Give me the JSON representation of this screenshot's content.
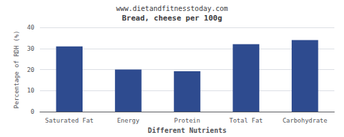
{
  "chart_data": {
    "type": "bar",
    "title": "Bread, cheese per 100g",
    "subtitle": "www.dietandfitnesstoday.com",
    "categories": [
      "Saturated Fat",
      "Energy",
      "Protein",
      "Total Fat",
      "Carbohydrate"
    ],
    "values": [
      31.0,
      20.0,
      19.2,
      32.0,
      34.0
    ],
    "color": "#2e4b8f",
    "xlabel": "Different Nutrients",
    "ylabel": "Percentage of RDH (%)",
    "ylim": [
      0,
      40
    ],
    "yticks": [
      0,
      10,
      20,
      30,
      40
    ],
    "grid": true
  }
}
